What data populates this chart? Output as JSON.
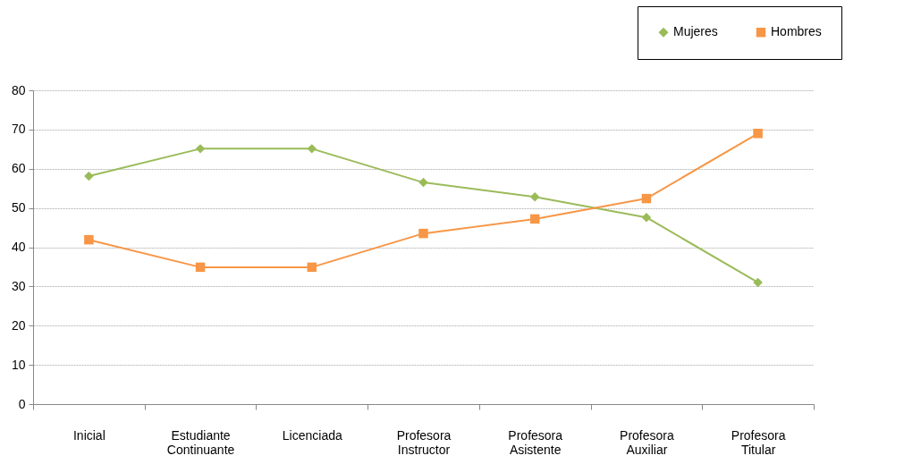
{
  "chart_data": {
    "type": "line",
    "categories": [
      "Inicial",
      "Estudiante Continuante",
      "Licenciada",
      "Profesora Instructor",
      "Profesora Asistente",
      "Profesora Auxiliar",
      "Profesora Titular"
    ],
    "series": [
      {
        "name": "Mujeres",
        "color": "#9bbb59",
        "marker": "diamond",
        "values": [
          58.1,
          65.1,
          65.1,
          56.5,
          52.8,
          47.6,
          31.0
        ]
      },
      {
        "name": "Hombres",
        "color": "#f79646",
        "marker": "square",
        "values": [
          41.9,
          34.9,
          34.9,
          43.5,
          47.2,
          52.4,
          69.0
        ]
      }
    ],
    "ylim": [
      0,
      80
    ],
    "yticks": [
      0,
      10,
      20,
      30,
      40,
      50,
      60,
      70,
      80
    ],
    "grid": "y",
    "legend": "top right",
    "line_style": "solid"
  }
}
